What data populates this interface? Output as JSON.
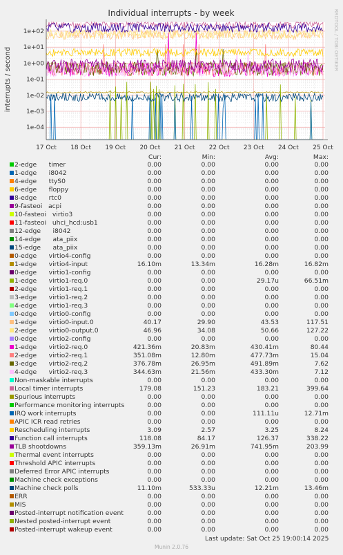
{
  "chart_data": {
    "type": "line",
    "title": "Individual interrupts - by week",
    "ylabel": "interrupts / second",
    "yscale": "log",
    "side_label": "RRDTOOL / TOBI OETIKER",
    "x_ticks": [
      "17 Oct",
      "18 Oct",
      "19 Oct",
      "20 Oct",
      "21 Oct",
      "22 Oct",
      "23 Oct",
      "24 Oct",
      "25 Oct"
    ],
    "y_ticks": [
      "1e+02",
      "1e+01",
      "1e+00",
      "1e-01",
      "1e-02",
      "1e-03",
      "1e-04"
    ],
    "ylim": [
      2e-05,
      200
    ],
    "grid": true,
    "columns": [
      "Cur:",
      "Min:",
      "Avg:",
      "Max:"
    ],
    "series": [
      {
        "name": "2-edge      timer",
        "color": "#00cc00",
        "cur": "0.00",
        "min": "0.00",
        "avg": "0.00",
        "max": "0.00"
      },
      {
        "name": "1-edge      i8042",
        "color": "#0066b3",
        "cur": "0.00",
        "min": "0.00",
        "avg": "0.00",
        "max": "0.00"
      },
      {
        "name": "4-edge      ttyS0",
        "color": "#ff8000",
        "cur": "0.00",
        "min": "0.00",
        "avg": "0.00",
        "max": "0.00"
      },
      {
        "name": "6-edge      floppy",
        "color": "#ffcc00",
        "cur": "0.00",
        "min": "0.00",
        "avg": "0.00",
        "max": "0.00"
      },
      {
        "name": "8-edge      rtc0",
        "color": "#330099",
        "cur": "0.00",
        "min": "0.00",
        "avg": "0.00",
        "max": "0.00"
      },
      {
        "name": "9-fasteoi   acpi",
        "color": "#990099",
        "cur": "0.00",
        "min": "0.00",
        "avg": "0.00",
        "max": "0.00"
      },
      {
        "name": "10-fasteoi   virtio3",
        "color": "#ccff00",
        "cur": "0.00",
        "min": "0.00",
        "avg": "0.00",
        "max": "0.00"
      },
      {
        "name": "11-fasteoi   uhci_hcd:usb1",
        "color": "#ff0000",
        "cur": "0.00",
        "min": "0.00",
        "avg": "0.00",
        "max": "0.00"
      },
      {
        "name": "12-edge      i8042",
        "color": "#808080",
        "cur": "0.00",
        "min": "0.00",
        "avg": "0.00",
        "max": "0.00"
      },
      {
        "name": "14-edge      ata_piix",
        "color": "#008f00",
        "cur": "0.00",
        "min": "0.00",
        "avg": "0.00",
        "max": "0.00"
      },
      {
        "name": "15-edge      ata_piix",
        "color": "#00487d",
        "cur": "0.00",
        "min": "0.00",
        "avg": "0.00",
        "max": "0.00"
      },
      {
        "name": "0-edge      virtio4-config",
        "color": "#b35a00",
        "cur": "0.00",
        "min": "0.00",
        "avg": "0.00",
        "max": "0.00"
      },
      {
        "name": "1-edge      virtio4-input",
        "color": "#b38f00",
        "cur": "16.10m",
        "min": "13.34m",
        "avg": "16.28m",
        "max": "16.82m"
      },
      {
        "name": "0-edge      virtio1-config",
        "color": "#6b006b",
        "cur": "0.00",
        "min": "0.00",
        "avg": "0.00",
        "max": "0.00"
      },
      {
        "name": "1-edge      virtio1-req.0",
        "color": "#8fb300",
        "cur": "0.00",
        "min": "0.00",
        "avg": "29.17u",
        "max": "66.51m"
      },
      {
        "name": "2-edge      virtio1-req.1",
        "color": "#b30000",
        "cur": "0.00",
        "min": "0.00",
        "avg": "0.00",
        "max": "0.00"
      },
      {
        "name": "3-edge      virtio1-req.2",
        "color": "#bebebe",
        "cur": "0.00",
        "min": "0.00",
        "avg": "0.00",
        "max": "0.00"
      },
      {
        "name": "4-edge      virtio1-req.3",
        "color": "#80ff80",
        "cur": "0.00",
        "min": "0.00",
        "avg": "0.00",
        "max": "0.00"
      },
      {
        "name": "0-edge      virtio0-config",
        "color": "#80c9ff",
        "cur": "0.00",
        "min": "0.00",
        "avg": "0.00",
        "max": "0.00"
      },
      {
        "name": "1-edge      virtio0-input.0",
        "color": "#ffc080",
        "cur": "40.17",
        "min": "29.90",
        "avg": "43.53",
        "max": "117.51"
      },
      {
        "name": "2-edge      virtio0-output.0",
        "color": "#ffe680",
        "cur": "46.96",
        "min": "34.08",
        "avg": "50.66",
        "max": "127.22"
      },
      {
        "name": "0-edge      virtio2-config",
        "color": "#aa80ff",
        "cur": "0.00",
        "min": "0.00",
        "avg": "0.00",
        "max": "0.00"
      },
      {
        "name": "1-edge      virtio2-req.0",
        "color": "#ee00cc",
        "cur": "421.36m",
        "min": "20.83m",
        "avg": "430.41m",
        "max": "80.44"
      },
      {
        "name": "2-edge      virtio2-req.1",
        "color": "#ff8080",
        "cur": "351.08m",
        "min": "12.80m",
        "avg": "477.73m",
        "max": "15.04"
      },
      {
        "name": "3-edge      virtio2-req.2",
        "color": "#666600",
        "cur": "376.78m",
        "min": "26.95m",
        "avg": "491.89m",
        "max": "7.62"
      },
      {
        "name": "4-edge      virtio2-req.3",
        "color": "#ffbfff",
        "cur": "344.63m",
        "min": "21.56m",
        "avg": "433.30m",
        "max": "7.12"
      },
      {
        "name": "Non-maskable interrupts",
        "color": "#00ffcc",
        "cur": "0.00",
        "min": "0.00",
        "avg": "0.00",
        "max": "0.00"
      },
      {
        "name": "Local timer interrupts",
        "color": "#cc6699",
        "cur": "179.08",
        "min": "151.23",
        "avg": "183.21",
        "max": "399.64"
      },
      {
        "name": "Spurious interrupts",
        "color": "#999900",
        "cur": "0.00",
        "min": "0.00",
        "avg": "0.00",
        "max": "0.00"
      },
      {
        "name": "Performance monitoring interrupts",
        "color": "#00cc00",
        "cur": "0.00",
        "min": "0.00",
        "avg": "0.00",
        "max": "0.00"
      },
      {
        "name": "IRQ work interrupts",
        "color": "#0066b3",
        "cur": "0.00",
        "min": "0.00",
        "avg": "111.11u",
        "max": "12.71m"
      },
      {
        "name": "APIC ICR read retries",
        "color": "#ff8000",
        "cur": "0.00",
        "min": "0.00",
        "avg": "0.00",
        "max": "0.00"
      },
      {
        "name": "Rescheduling interrupts",
        "color": "#ffcc00",
        "cur": "3.09",
        "min": "2.57",
        "avg": "3.25",
        "max": "8.24"
      },
      {
        "name": "Function call interrupts",
        "color": "#330099",
        "cur": "118.08",
        "min": "84.17",
        "avg": "126.37",
        "max": "338.22"
      },
      {
        "name": "TLB shootdowns",
        "color": "#990099",
        "cur": "359.13m",
        "min": "26.91m",
        "avg": "741.95m",
        "max": "203.99"
      },
      {
        "name": "Thermal event interrupts",
        "color": "#ccff00",
        "cur": "0.00",
        "min": "0.00",
        "avg": "0.00",
        "max": "0.00"
      },
      {
        "name": "Threshold APIC interrupts",
        "color": "#ff0000",
        "cur": "0.00",
        "min": "0.00",
        "avg": "0.00",
        "max": "0.00"
      },
      {
        "name": "Deferred Error APIC interrupts",
        "color": "#808080",
        "cur": "0.00",
        "min": "0.00",
        "avg": "0.00",
        "max": "0.00"
      },
      {
        "name": "Machine check exceptions",
        "color": "#008f00",
        "cur": "0.00",
        "min": "0.00",
        "avg": "0.00",
        "max": "0.00"
      },
      {
        "name": "Machine check polls",
        "color": "#00487d",
        "cur": "11.10m",
        "min": "533.33u",
        "avg": "12.21m",
        "max": "13.46m"
      },
      {
        "name": "ERR",
        "color": "#b35a00",
        "cur": "0.00",
        "min": "0.00",
        "avg": "0.00",
        "max": "0.00"
      },
      {
        "name": "MIS",
        "color": "#b38f00",
        "cur": "0.00",
        "min": "0.00",
        "avg": "0.00",
        "max": "0.00"
      },
      {
        "name": "Posted-interrupt notification event",
        "color": "#6b006b",
        "cur": "0.00",
        "min": "0.00",
        "avg": "0.00",
        "max": "0.00"
      },
      {
        "name": "Nested posted-interrupt event",
        "color": "#8fb300",
        "cur": "0.00",
        "min": "0.00",
        "avg": "0.00",
        "max": "0.00"
      },
      {
        "name": "Posted-interrupt wakeup event",
        "color": "#b30000",
        "cur": "0.00",
        "min": "0.00",
        "avg": "0.00",
        "max": "0.00"
      }
    ]
  },
  "footer": {
    "last_update": "Last update: Sat Oct 25 19:00:14 2025",
    "generator": "Munin 2.0.76"
  }
}
